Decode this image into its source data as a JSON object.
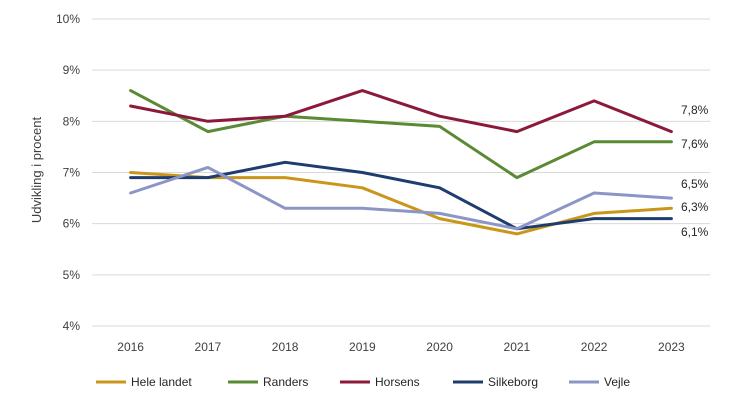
{
  "chart_data": {
    "type": "line",
    "x": [
      "2016",
      "2017",
      "2018",
      "2019",
      "2020",
      "2021",
      "2022",
      "2023"
    ],
    "ylabel": "Udvikling i procent",
    "ylim": [
      4,
      10
    ],
    "yticks": [
      4,
      5,
      6,
      7,
      8,
      9,
      10
    ],
    "ytick_labels": [
      "4%",
      "5%",
      "6%",
      "7%",
      "8%",
      "9%",
      "10%"
    ],
    "grid": true,
    "legend": "bottom",
    "series": [
      {
        "name": "Hele landet",
        "color": "#c9961a",
        "values": [
          7.0,
          6.9,
          6.9,
          6.7,
          6.1,
          5.8,
          6.2,
          6.3
        ],
        "end_label": "6,3%"
      },
      {
        "name": "Randers",
        "color": "#5a8a34",
        "values": [
          8.6,
          7.8,
          8.1,
          8.0,
          7.9,
          6.9,
          7.6,
          7.6
        ],
        "end_label": "7,6%"
      },
      {
        "name": "Horsens",
        "color": "#8b1a3a",
        "values": [
          8.3,
          8.0,
          8.1,
          8.6,
          8.1,
          7.8,
          8.4,
          7.8
        ],
        "end_label": "7,8%"
      },
      {
        "name": "Silkeborg",
        "color": "#1f3c6e",
        "values": [
          6.9,
          6.9,
          7.2,
          7.0,
          6.7,
          5.9,
          6.1,
          6.1
        ],
        "end_label": "6,1%"
      },
      {
        "name": "Vejle",
        "color": "#8c96c6",
        "values": [
          6.6,
          7.1,
          6.3,
          6.3,
          6.2,
          5.9,
          6.6,
          6.5
        ],
        "end_label": "6,5%"
      }
    ]
  }
}
